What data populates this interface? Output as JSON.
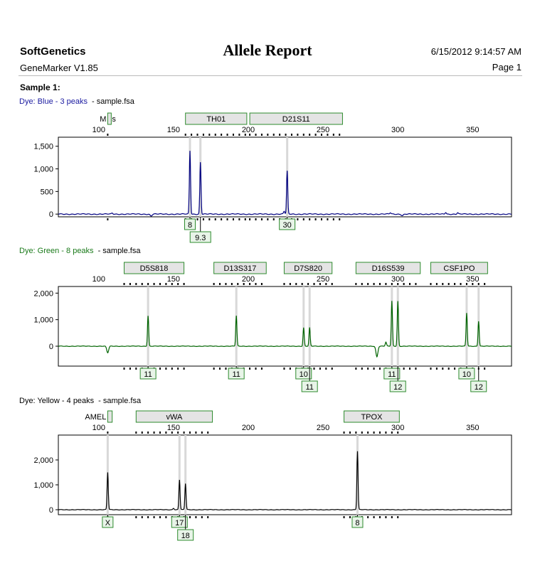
{
  "header": {
    "company": "SoftGenetics",
    "software": "GeneMarker V1.85",
    "title": "Allele Report",
    "datetime": "6/15/2012 9:14:57 AM",
    "page": "Page 1"
  },
  "sample_label": "Sample 1:",
  "chart_data": [
    {
      "type": "line",
      "dye": "Blue",
      "dye_label": "Dye: Blue - 3 peaks",
      "file": "- sample.fsa",
      "color": "#000080",
      "label_color": "#1a1aa0",
      "xlim": [
        73,
        376
      ],
      "x_ticks": [
        100,
        150,
        200,
        250,
        300,
        350
      ],
      "ylim": [
        -60,
        1700
      ],
      "y_ticks": [
        0,
        500,
        1000,
        1500
      ],
      "y_tick_labels": [
        "0",
        "500",
        "1,000",
        "1,500"
      ],
      "markers": [
        {
          "name": "M",
          "start": 106,
          "end": 108,
          "suffix": "s"
        },
        {
          "name": "TH01",
          "start": 158,
          "end": 199
        },
        {
          "name": "D21S11",
          "start": 201,
          "end": 263
        }
      ],
      "peaks": [
        {
          "x": 161,
          "height": 1400,
          "call": "8",
          "row": 0
        },
        {
          "x": 168,
          "height": 1150,
          "call": "9.3",
          "row": 1
        },
        {
          "x": 226,
          "height": 950,
          "call": "30",
          "row": 0
        }
      ],
      "small_peaks": [
        {
          "x": 109,
          "height": 20
        },
        {
          "x": 224,
          "height": 60
        },
        {
          "x": 295,
          "height": 30
        },
        {
          "x": 332,
          "height": 40
        },
        {
          "x": 340,
          "height": 30
        }
      ],
      "dips": [
        {
          "x": 135,
          "depth": 40
        },
        {
          "x": 303,
          "depth": 30
        }
      ]
    },
    {
      "type": "line",
      "dye": "Green",
      "dye_label": "Dye: Green - 8 peaks",
      "file": "- sample.fsa",
      "color": "#006400",
      "label_color": "#1a7a1a",
      "xlim": [
        73,
        376
      ],
      "x_ticks": [
        100,
        150,
        200,
        250,
        300,
        350
      ],
      "ylim": [
        -750,
        2250
      ],
      "y_ticks": [
        0,
        1000,
        2000
      ],
      "y_tick_labels": [
        "0",
        "1,000",
        "2,000"
      ],
      "markers": [
        {
          "name": "D5S818",
          "start": 117,
          "end": 157
        },
        {
          "name": "D13S317",
          "start": 177,
          "end": 212
        },
        {
          "name": "D7S820",
          "start": 224,
          "end": 256
        },
        {
          "name": "D16S539",
          "start": 272,
          "end": 315
        },
        {
          "name": "CSF1PO",
          "start": 322,
          "end": 360
        }
      ],
      "peaks": [
        {
          "x": 133,
          "height": 1150,
          "call": "11",
          "row": 0
        },
        {
          "x": 192,
          "height": 1150,
          "call": "11",
          "row": 0
        },
        {
          "x": 237,
          "height": 700,
          "call": "10",
          "row": 0
        },
        {
          "x": 241,
          "height": 700,
          "call": "11",
          "row": 1
        },
        {
          "x": 296,
          "height": 1700,
          "call": "11",
          "row": 0
        },
        {
          "x": 300,
          "height": 1700,
          "call": "12",
          "row": 1
        },
        {
          "x": 346,
          "height": 1250,
          "call": "10",
          "row": 0
        },
        {
          "x": 354,
          "height": 950,
          "call": "12",
          "row": 1
        }
      ],
      "small_peaks": [
        {
          "x": 292,
          "height": 150
        }
      ],
      "dips": [
        {
          "x": 106,
          "depth": 250
        },
        {
          "x": 286,
          "depth": 400
        }
      ]
    },
    {
      "type": "line",
      "dye": "Yellow",
      "dye_label": "Dye: Yellow - 4 peaks",
      "file": "- sample.fsa",
      "color": "#000000",
      "label_color": "#000000",
      "xlim": [
        73,
        376
      ],
      "x_ticks": [
        100,
        150,
        200,
        250,
        300,
        350
      ],
      "ylim": [
        -200,
        3000
      ],
      "y_ticks": [
        0,
        1000,
        2000
      ],
      "y_tick_labels": [
        "0",
        "1,000",
        "2,000"
      ],
      "markers": [
        {
          "name": "AMEL",
          "start": 106,
          "end": 109
        },
        {
          "name": "vWA",
          "start": 125,
          "end": 176
        },
        {
          "name": "TPOX",
          "start": 264,
          "end": 301
        }
      ],
      "peaks": [
        {
          "x": 106,
          "height": 1500,
          "call": "X",
          "row": 0
        },
        {
          "x": 154,
          "height": 1200,
          "call": "17",
          "row": 0
        },
        {
          "x": 158,
          "height": 1050,
          "call": "18",
          "row": 1
        },
        {
          "x": 273,
          "height": 2350,
          "call": "8",
          "row": 0
        }
      ],
      "small_peaks": [
        {
          "x": 150,
          "height": 60
        }
      ],
      "dips": []
    }
  ]
}
